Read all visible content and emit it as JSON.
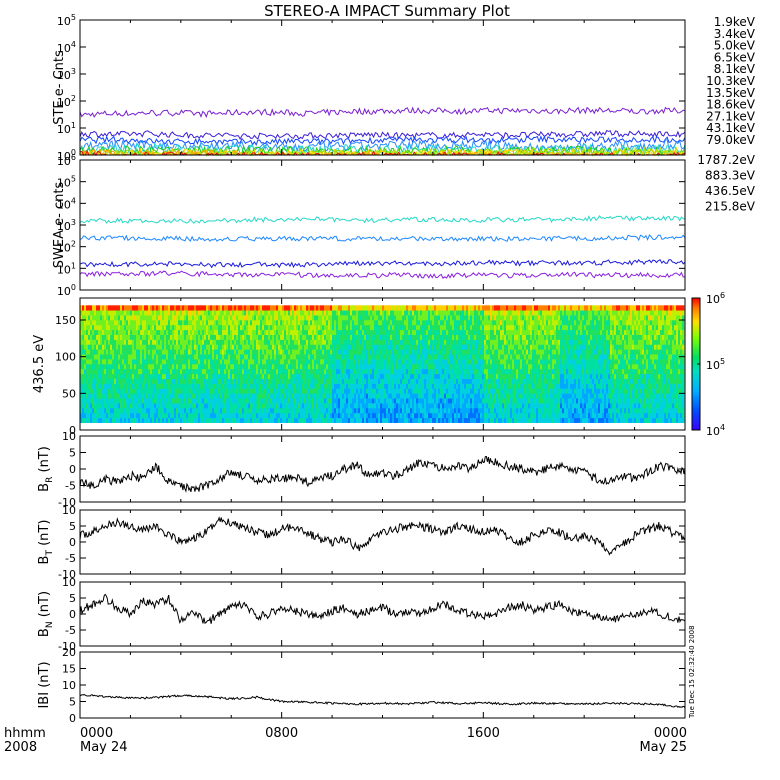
{
  "title": "STEREO-A IMPACT Summary Plot",
  "stamp": "Tue Dec 15 02:32:40 2008",
  "x_axis": {
    "label_top": "hhmm",
    "label_bottom": "2008",
    "ticks": [
      {
        "top": "0000",
        "bottom": "May 24",
        "hour": 0
      },
      {
        "top": "0800",
        "bottom": "",
        "hour": 8
      },
      {
        "top": "1600",
        "bottom": "",
        "hour": 16
      },
      {
        "top": "0000",
        "bottom": "May 25",
        "hour": 24
      }
    ],
    "minor_hours": [
      2,
      4,
      6,
      10,
      12,
      14,
      18,
      20,
      22
    ]
  },
  "colors": {
    "ste": [
      "#7a1fd0",
      "#3b1ed6",
      "#1444ff",
      "#2a8cff",
      "#27d6d0",
      "#20cc20",
      "#78e000",
      "#c8e000",
      "#ffd000",
      "#ff9a00",
      "#e01010"
    ],
    "swea": [
      "#8a20e0",
      "#1a1adc",
      "#1e88ff",
      "#25d8c8"
    ]
  },
  "chart_data": [
    {
      "type": "line",
      "title": "STE e- Cnts",
      "ylabel": "STE e- Cnts",
      "scale": "log",
      "ylim": [
        1,
        100000
      ],
      "yticks": [
        {
          "exp": "0"
        },
        {
          "exp": "1"
        },
        {
          "exp": "2"
        },
        {
          "exp": "3"
        },
        {
          "exp": "4"
        },
        {
          "exp": "5"
        }
      ],
      "series": [
        {
          "name": "1.9keV",
          "level": 32
        },
        {
          "name": "3.4keV",
          "level": 6
        },
        {
          "name": "5.0keV",
          "level": 3.5
        },
        {
          "name": "6.5keV",
          "level": 2.2
        },
        {
          "name": "8.1keV",
          "level": 1.6
        },
        {
          "name": "10.3keV",
          "level": 1.3
        },
        {
          "name": "13.5keV",
          "level": 1.2
        },
        {
          "name": "18.6keV",
          "level": 1.1
        },
        {
          "name": "27.1keV",
          "level": 1.05
        },
        {
          "name": "43.1keV",
          "level": 1.02
        },
        {
          "name": "79.0keV",
          "level": 1.0
        }
      ]
    },
    {
      "type": "line",
      "title": "SWEA e- cnts",
      "ylabel": "SWEA e- cnts",
      "scale": "log",
      "ylim": [
        1,
        1000000
      ],
      "yticks": [
        {
          "exp": "0"
        },
        {
          "exp": "1"
        },
        {
          "exp": "2"
        },
        {
          "exp": "3"
        },
        {
          "exp": "4"
        },
        {
          "exp": "5"
        },
        {
          "exp": "6"
        }
      ],
      "series": [
        {
          "name": "1787.2eV",
          "level": 5
        },
        {
          "name": "883.3eV",
          "level": 15
        },
        {
          "name": "436.5eV",
          "level": 250
        },
        {
          "name": "215.8eV",
          "level": 1600
        }
      ]
    },
    {
      "type": "heatmap",
      "title": "436.5 eV",
      "ylabel": "436.5 eV",
      "ylim": [
        0,
        180
      ],
      "yticks": [
        "0",
        "50",
        "100",
        "150"
      ],
      "colorbar": {
        "scale": "log",
        "range": [
          10000,
          1000000
        ],
        "ticks": [
          {
            "exp": "4"
          },
          {
            "exp": "5"
          },
          {
            "exp": "6"
          }
        ]
      }
    },
    {
      "type": "line",
      "ylabel": "B_R (nT)",
      "ylabel_main": "B",
      "ylabel_sub": "R",
      "ylabel_unit": "(nT)",
      "ylim": [
        -10,
        10
      ],
      "yticks": [
        "-10",
        "-5",
        "0",
        "5",
        "10"
      ],
      "x": [
        0,
        0.5,
        1,
        1.5,
        2,
        2.5,
        3,
        3.5,
        4,
        4.5,
        5,
        5.5,
        6,
        6.5,
        7,
        7.5,
        8,
        8.5,
        9,
        9.5,
        10,
        10.5,
        11,
        11.5,
        12,
        12.5,
        13,
        13.5,
        14,
        14.5,
        15,
        15.5,
        16,
        16.5,
        17,
        17.5,
        18,
        18.5,
        19,
        19.5,
        20,
        20.5,
        21,
        21.5,
        22,
        22.5,
        23,
        23.5,
        24
      ],
      "values": [
        -4,
        -5,
        -3,
        -4,
        -2,
        -3,
        1,
        -4,
        -5,
        -6,
        -5,
        -3,
        -1,
        -2,
        -4,
        -3,
        -3,
        -2,
        -4,
        -3,
        -2,
        0,
        1,
        -2,
        -1,
        -2,
        0,
        2,
        1,
        0,
        1,
        0,
        3,
        2,
        1,
        0,
        -1,
        0,
        1,
        0,
        -1,
        -3,
        -4,
        -2,
        -3,
        -1,
        1,
        0,
        -1
      ]
    },
    {
      "type": "line",
      "ylabel": "B_T (nT)",
      "ylabel_main": "B",
      "ylabel_sub": "T",
      "ylabel_unit": "(nT)",
      "ylim": [
        -10,
        10
      ],
      "yticks": [
        "-10",
        "-5",
        "0",
        "5",
        "10"
      ],
      "x": [
        0,
        0.5,
        1,
        1.5,
        2,
        2.5,
        3,
        3.5,
        4,
        4.5,
        5,
        5.5,
        6,
        6.5,
        7,
        7.5,
        8,
        8.5,
        9,
        9.5,
        10,
        10.5,
        11,
        11.5,
        12,
        12.5,
        13,
        13.5,
        14,
        14.5,
        15,
        15.5,
        16,
        16.5,
        17,
        17.5,
        18,
        18.5,
        19,
        19.5,
        20,
        20.5,
        21,
        21.5,
        22,
        22.5,
        23,
        23.5,
        24
      ],
      "values": [
        2,
        3,
        5,
        6,
        5,
        4,
        5,
        2,
        0,
        1,
        3,
        7,
        6,
        5,
        3,
        2,
        4,
        5,
        3,
        1,
        0,
        1,
        -2,
        1,
        3,
        4,
        5,
        5,
        4,
        3,
        5,
        4,
        3,
        4,
        1,
        0,
        2,
        4,
        3,
        1,
        2,
        0,
        -3,
        -1,
        2,
        4,
        5,
        3,
        1
      ]
    },
    {
      "type": "line",
      "ylabel": "B_N (nT)",
      "ylabel_main": "B",
      "ylabel_sub": "N",
      "ylabel_unit": "(nT)",
      "ylim": [
        -10,
        10
      ],
      "yticks": [
        "-10",
        "-5",
        "0",
        "5",
        "10"
      ],
      "x": [
        0,
        0.5,
        1,
        1.5,
        2,
        2.5,
        3,
        3.5,
        4,
        4.5,
        5,
        5.5,
        6,
        6.5,
        7,
        7.5,
        8,
        8.5,
        9,
        9.5,
        10,
        10.5,
        11,
        11.5,
        12,
        12.5,
        13,
        13.5,
        14,
        14.5,
        15,
        15.5,
        16,
        16.5,
        17,
        17.5,
        18,
        18.5,
        19,
        19.5,
        20,
        20.5,
        21,
        21.5,
        22,
        22.5,
        23,
        23.5,
        24
      ],
      "values": [
        1,
        3,
        5,
        2,
        0,
        4,
        3,
        5,
        -2,
        1,
        -3,
        0,
        2,
        3,
        -1,
        0,
        2,
        1,
        0,
        -1,
        1,
        2,
        0,
        1,
        2,
        0,
        1,
        0,
        2,
        3,
        1,
        0,
        -1,
        0,
        2,
        3,
        1,
        2,
        3,
        1,
        0,
        -1,
        -2,
        -1,
        0,
        1,
        0,
        -1,
        -2
      ]
    },
    {
      "type": "line",
      "ylabel": "|B| (nT)",
      "ylabel_main": "IBI",
      "ylabel_sub": "",
      "ylabel_unit": "(nT)",
      "ylim": [
        0,
        20
      ],
      "yticks": [
        "0",
        "5",
        "10",
        "15",
        "20"
      ],
      "x": [
        0,
        1,
        2,
        3,
        4,
        5,
        6,
        7,
        8,
        9,
        10,
        11,
        12,
        13,
        14,
        15,
        16,
        17,
        18,
        19,
        20,
        21,
        22,
        23,
        24
      ],
      "values": [
        7,
        6.5,
        6,
        6.2,
        6.8,
        6.5,
        5.8,
        6.3,
        5,
        4.8,
        4.5,
        4.2,
        4.5,
        4.3,
        4.8,
        4.4,
        4.6,
        4.2,
        4.5,
        4.4,
        4.2,
        4.5,
        4.3,
        4.1,
        3.2
      ]
    }
  ]
}
